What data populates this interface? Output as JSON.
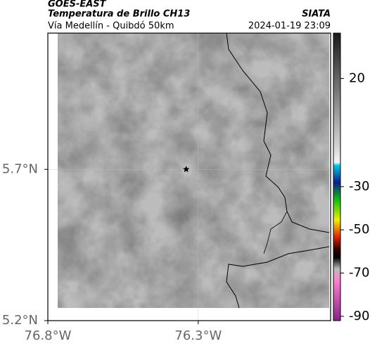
{
  "header": {
    "title": "GOES-EAST",
    "subtitle": "Temperatura de Brillo CH13",
    "source": "SIATA",
    "route": "Vía Medellín - Quibdó 50km",
    "datetime": "2024-01-19 23:09"
  },
  "map": {
    "xlim": [
      -76.8,
      -75.86
    ],
    "ylim": [
      5.2,
      6.15
    ],
    "xticks": [
      {
        "value": -76.8,
        "label": "76.8°W"
      },
      {
        "value": -76.3,
        "label": "76.3°W"
      }
    ],
    "yticks": [
      {
        "value": 5.7,
        "label": "5.7°N"
      },
      {
        "value": 5.2,
        "label": "5.2°N"
      }
    ],
    "marker": {
      "lon": -76.34,
      "lat": 5.7
    }
  },
  "colorbar": {
    "lim": [
      -92,
      41
    ],
    "ticks": [
      20,
      -30,
      -50,
      -70,
      -90
    ]
  }
}
